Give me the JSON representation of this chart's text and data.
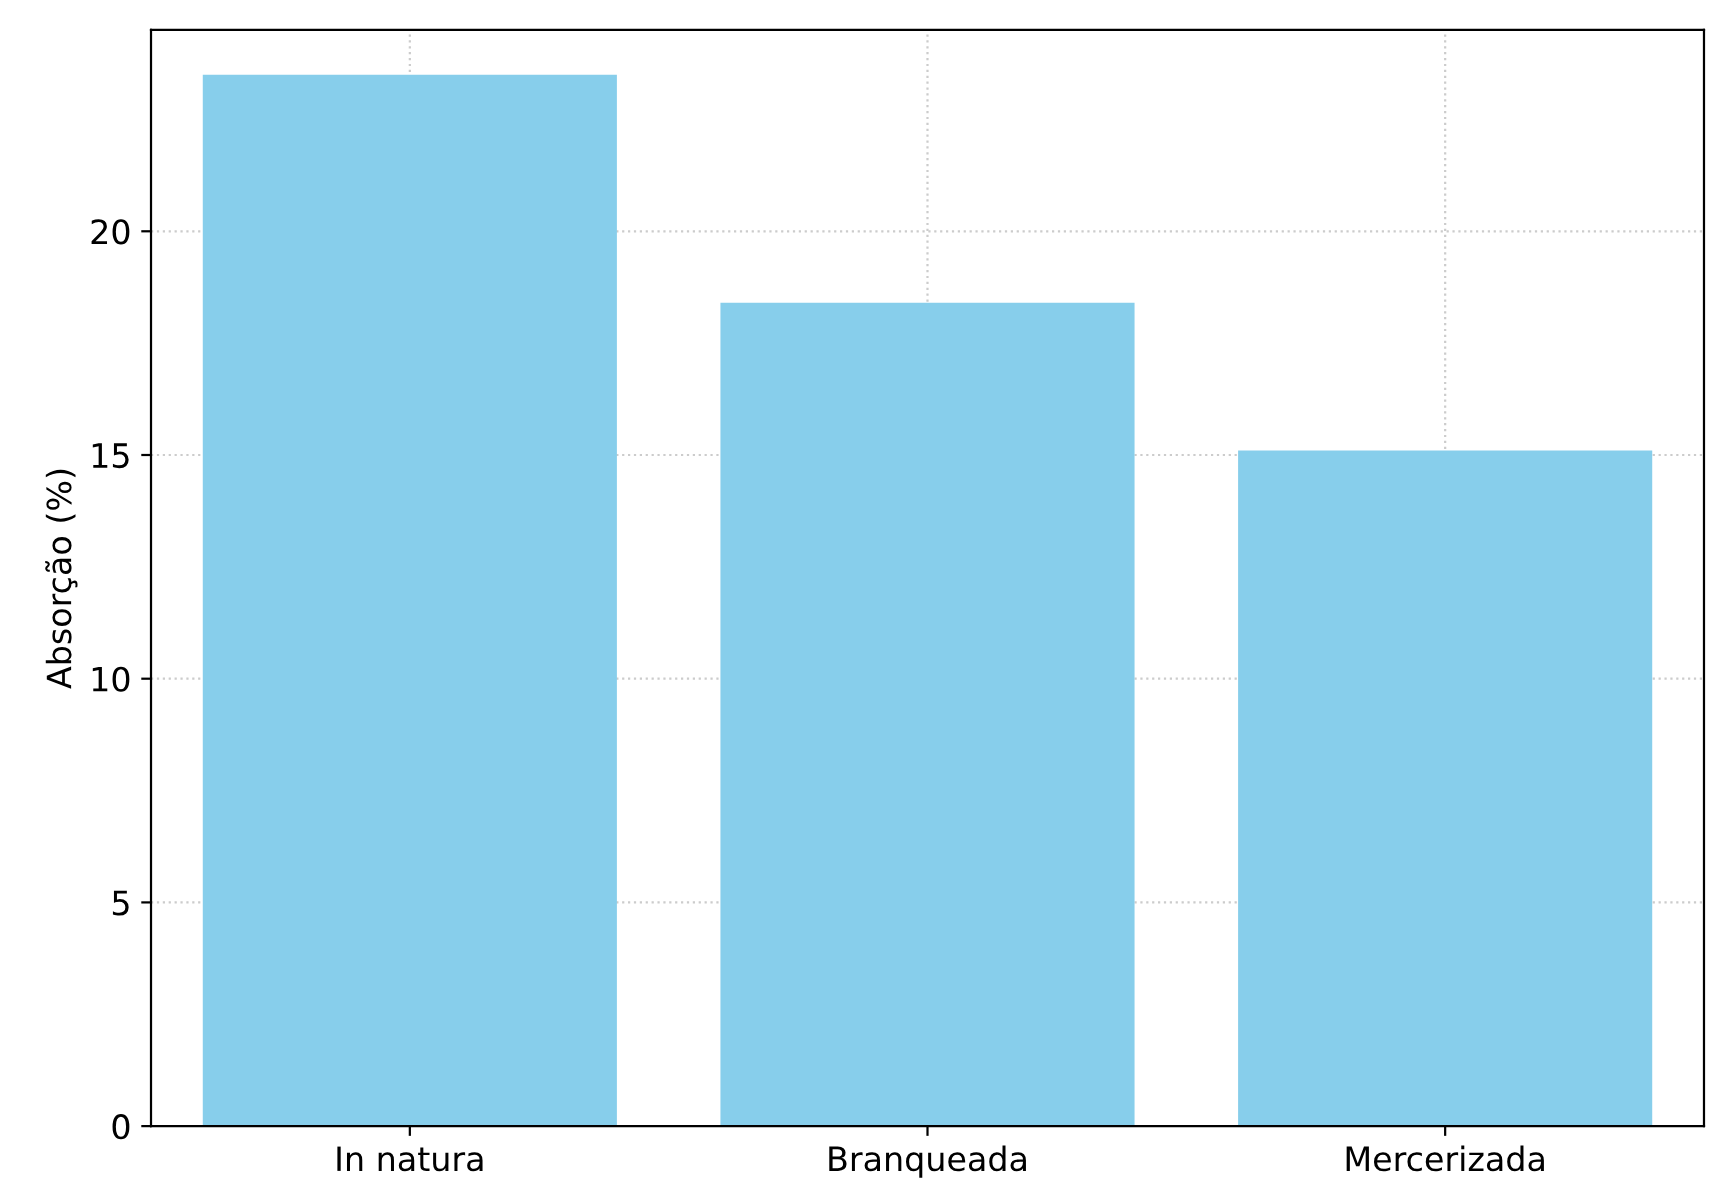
{
  "chart_data": {
    "type": "bar",
    "ylabel": "Absorção (%)",
    "categories": [
      "In natura",
      "Branqueada",
      "Mercerizada"
    ],
    "values": [
      23.5,
      18.4,
      15.1
    ],
    "color": "#87ceeb",
    "ylim": [
      0,
      24.5
    ],
    "yticks": [
      0,
      5,
      10,
      15,
      20
    ],
    "grid": true
  }
}
